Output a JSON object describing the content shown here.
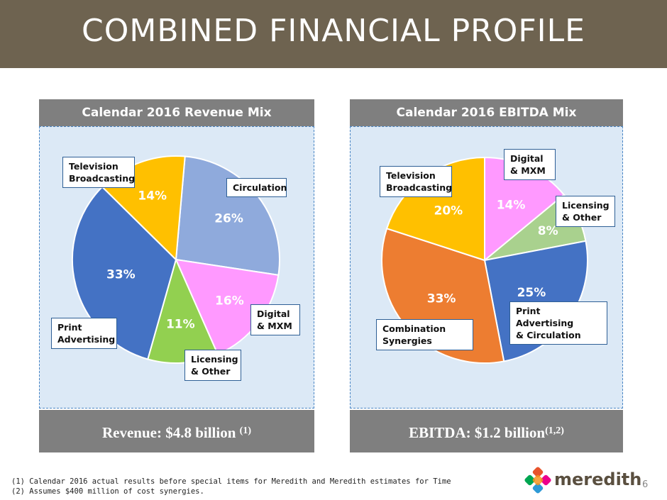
{
  "title": "COMBINED FINANCIAL PROFILE",
  "colors": {
    "title_bar": "#6e6350",
    "panel_header": "#7f7f7f",
    "panel_body": "#dce9f6",
    "callout_border": "#2e5f95"
  },
  "chart_data": [
    {
      "type": "pie",
      "title": "Calendar 2016 Revenue Mix",
      "footer": {
        "label": "Revenue:  $4.8 billion ",
        "note": "(1)"
      },
      "slices": [
        {
          "key": "circulation",
          "label": "Circulation",
          "value": 26,
          "value_label": "26%",
          "color": "#8faadc"
        },
        {
          "key": "digital",
          "label": "Digital\n& MXM",
          "value": 16,
          "value_label": "16%",
          "color": "#ff99ff"
        },
        {
          "key": "licensing",
          "label": "Licensing\n& Other",
          "value": 11,
          "value_label": "11%",
          "color": "#92d050"
        },
        {
          "key": "print",
          "label": "Print\nAdvertising",
          "value": 33,
          "value_label": "33%",
          "color": "#4472c4"
        },
        {
          "key": "tv",
          "label": "Television\nBroadcasting",
          "value": 14,
          "value_label": "14%",
          "color": "#ffc000"
        }
      ]
    },
    {
      "type": "pie",
      "title": "Calendar 2016 EBITDA Mix",
      "footer": {
        "label": "EBITDA: $1.2 billion",
        "note": "(1,2)"
      },
      "slices": [
        {
          "key": "digital",
          "label": "Digital\n& MXM",
          "value": 14,
          "value_label": "14%",
          "color": "#ff99ff"
        },
        {
          "key": "licensing",
          "label": "Licensing\n& Other",
          "value": 8,
          "value_label": "8%",
          "color": "#a9d18e"
        },
        {
          "key": "print_circ",
          "label": "Print Advertising\n& Circulation",
          "value": 25,
          "value_label": "25%",
          "color": "#4472c4"
        },
        {
          "key": "synergies",
          "label": "Combination\nSynergies",
          "value": 33,
          "value_label": "33%",
          "color": "#ed7d31"
        },
        {
          "key": "tv",
          "label": "Television\nBroadcasting",
          "value": 20,
          "value_label": "20%",
          "color": "#ffc000"
        }
      ]
    }
  ],
  "footnotes": [
    "(1)   Calendar 2016 actual results before special items for Meredith and Meredith estimates for Time",
    "(2)   Assumes $400 million of cost synergies."
  ],
  "logo": {
    "text": "meredith",
    "icon": "meredith-logo-icon"
  },
  "page_number": "6"
}
